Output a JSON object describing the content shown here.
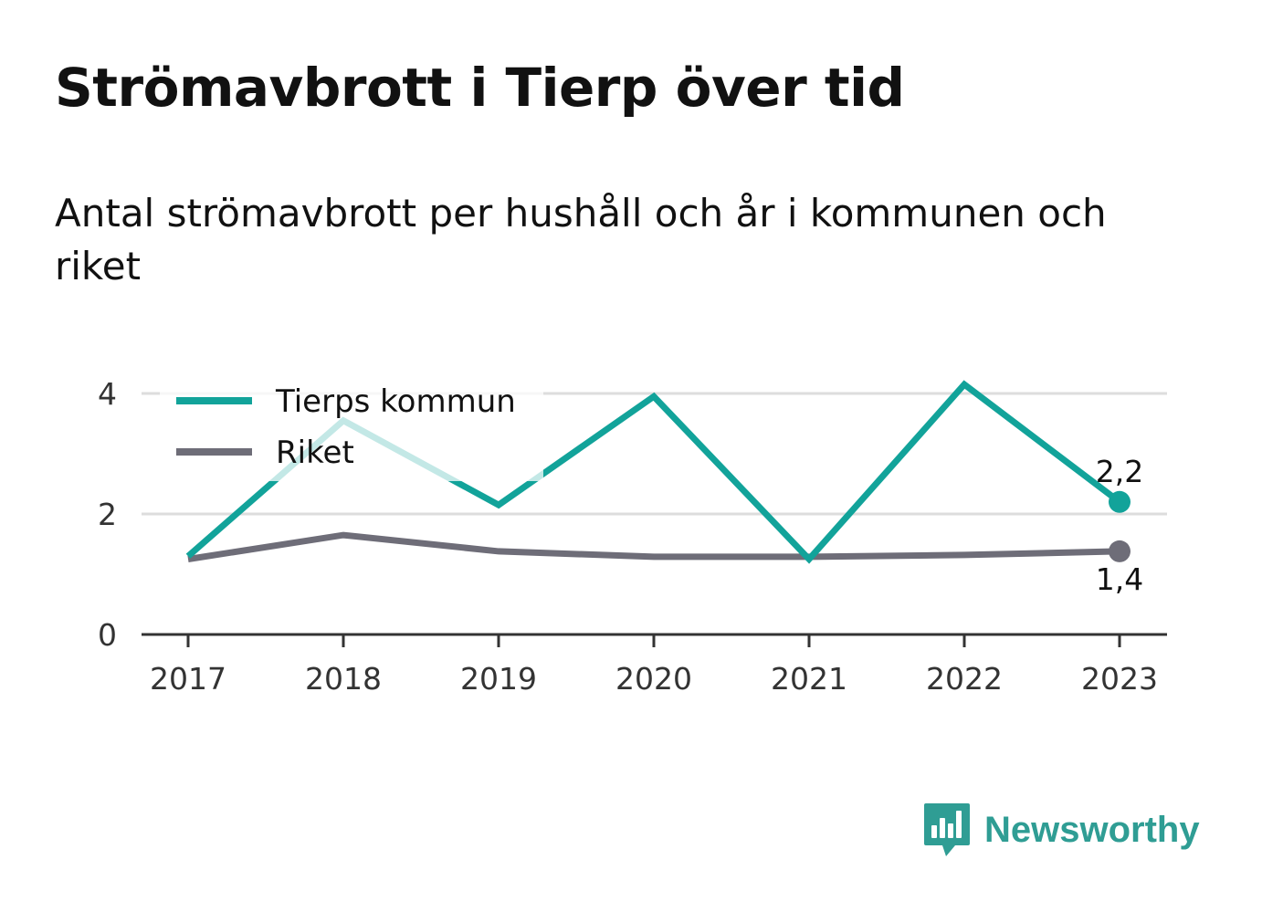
{
  "title": "Strömavbrott i Tierp över tid",
  "subtitle": "Antal strömavbrott per hushåll och år i kommunen och riket",
  "brand": {
    "name": "Newsworthy",
    "color": "#2f9d94"
  },
  "chart_data": {
    "type": "line",
    "categories": [
      "2017",
      "2018",
      "2019",
      "2020",
      "2021",
      "2022",
      "2023"
    ],
    "y_ticks": [
      "0",
      "2",
      "4"
    ],
    "ylim": [
      0,
      4.5
    ],
    "grid": true,
    "legend_position": "top-left",
    "series": [
      {
        "name": "Tierps kommun",
        "color": "#12a39a",
        "values": [
          1.3,
          3.55,
          2.15,
          3.95,
          1.25,
          4.15,
          2.2
        ],
        "end_label": "2,2"
      },
      {
        "name": "Riket",
        "color": "#6e6d78",
        "values": [
          1.25,
          1.65,
          1.38,
          1.29,
          1.29,
          1.32,
          1.38
        ],
        "end_label": "1,4"
      }
    ]
  }
}
